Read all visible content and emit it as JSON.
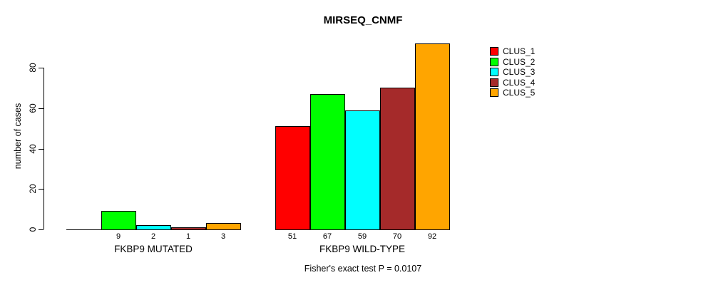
{
  "title": "MIRSEQ_CNMF",
  "footer": "Fisher's exact test P = 0.0107",
  "y_axis": {
    "label": "number of cases",
    "tick_labels": [
      "0",
      "20",
      "40",
      "60",
      "80"
    ]
  },
  "legend": {
    "items": [
      {
        "label": "CLUS_1",
        "color": "#FF0000"
      },
      {
        "label": "CLUS_2",
        "color": "#00FF00"
      },
      {
        "label": "CLUS_3",
        "color": "#00FFFF"
      },
      {
        "label": "CLUS_4",
        "color": "#A52A2A"
      },
      {
        "label": "CLUS_5",
        "color": "#FFA500"
      }
    ]
  },
  "chart_data": {
    "type": "bar",
    "title": "MIRSEQ_CNMF",
    "xlabel": "",
    "ylabel": "number of cases",
    "ylim": [
      0,
      93
    ],
    "y_ticks": [
      0,
      20,
      40,
      60,
      80
    ],
    "grid": false,
    "legend_position": "right",
    "categories": [
      "FKBP9 MUTATED",
      "FKBP9 WILD-TYPE"
    ],
    "series": [
      {
        "name": "CLUS_1",
        "color": "#FF0000",
        "values": [
          0,
          51
        ]
      },
      {
        "name": "CLUS_2",
        "color": "#00FF00",
        "values": [
          9,
          67
        ]
      },
      {
        "name": "CLUS_3",
        "color": "#00FFFF",
        "values": [
          2,
          59
        ]
      },
      {
        "name": "CLUS_4",
        "color": "#A52A2A",
        "values": [
          1,
          70
        ]
      },
      {
        "name": "CLUS_5",
        "color": "#FFA500",
        "values": [
          3,
          92
        ]
      }
    ],
    "bar_value_labels": [
      [
        "",
        "9",
        "2",
        "1",
        "3"
      ],
      [
        "51",
        "67",
        "59",
        "70",
        "92"
      ]
    ],
    "annotation": "Fisher's exact test P = 0.0107"
  }
}
